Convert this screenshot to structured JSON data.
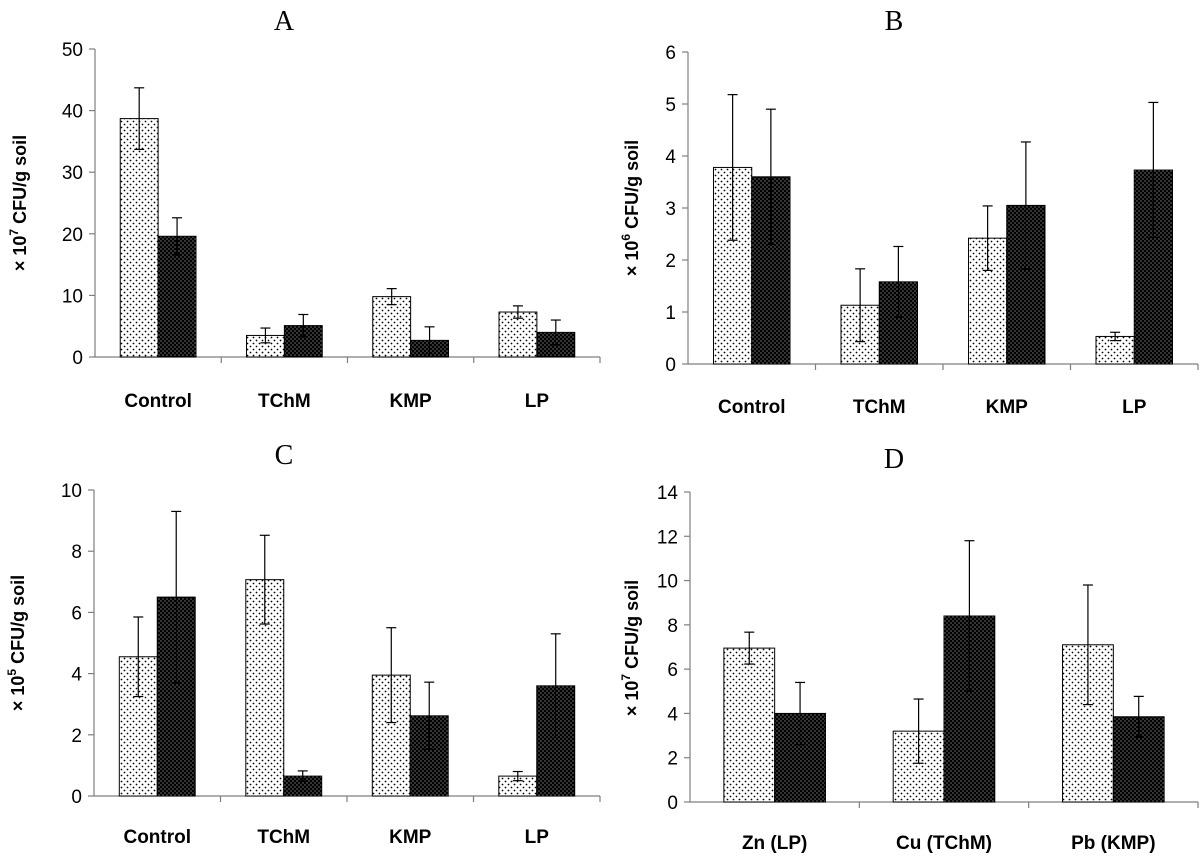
{
  "chart_data": [
    {
      "type": "bar",
      "title": "A",
      "ylabel_prefix": "× 10",
      "ylabel_exp": "7",
      "ylabel_suffix": " CFU/g soil",
      "ylim": [
        0,
        50
      ],
      "yticks": [
        "0",
        "10",
        "20",
        "30",
        "40",
        "50"
      ],
      "categories": [
        "Control",
        "TChM",
        "KMP",
        "LP"
      ],
      "series": [
        {
          "name": "dotted",
          "pattern": "dots-light",
          "values": [
            38.7,
            3.5,
            9.8,
            7.3
          ],
          "errors": [
            5.0,
            1.2,
            1.3,
            1.0
          ]
        },
        {
          "name": "dark",
          "pattern": "dots-dark",
          "values": [
            19.6,
            5.1,
            2.7,
            4.0
          ],
          "errors": [
            3.0,
            1.8,
            2.2,
            2.0
          ]
        }
      ]
    },
    {
      "type": "bar",
      "title": "B",
      "ylabel_prefix": "× 10",
      "ylabel_exp": "6",
      "ylabel_suffix": " CFU/g soil",
      "ylim": [
        0,
        6
      ],
      "yticks": [
        "0",
        "1",
        "2",
        "3",
        "4",
        "5",
        "6"
      ],
      "categories": [
        "Control",
        "TChM",
        "KMP",
        "LP"
      ],
      "series": [
        {
          "name": "dotted",
          "pattern": "dots-light",
          "values": [
            3.78,
            1.13,
            2.42,
            0.53
          ],
          "errors": [
            1.4,
            0.7,
            0.62,
            0.08
          ]
        },
        {
          "name": "dark",
          "pattern": "dots-dark",
          "values": [
            3.6,
            1.58,
            3.05,
            3.73
          ],
          "errors": [
            1.3,
            0.68,
            1.22,
            1.3
          ]
        }
      ]
    },
    {
      "type": "bar",
      "title": "C",
      "ylabel_prefix": "× 10",
      "ylabel_exp": "5",
      "ylabel_suffix": " CFU/g soil",
      "ylim": [
        0,
        10
      ],
      "yticks": [
        "0",
        "2",
        "4",
        "6",
        "8",
        "10"
      ],
      "categories": [
        "Control",
        "TChM",
        "KMP",
        "LP"
      ],
      "series": [
        {
          "name": "dotted",
          "pattern": "dots-light",
          "values": [
            4.55,
            7.07,
            3.95,
            0.65
          ],
          "errors": [
            1.3,
            1.45,
            1.55,
            0.15
          ]
        },
        {
          "name": "dark",
          "pattern": "dots-dark",
          "values": [
            6.5,
            0.65,
            2.62,
            3.6
          ],
          "errors": [
            2.8,
            0.17,
            1.1,
            1.7
          ]
        }
      ]
    },
    {
      "type": "bar",
      "title": "D",
      "ylabel_prefix": "× 10",
      "ylabel_exp": "7",
      "ylabel_suffix": " CFU/g soil",
      "ylim": [
        0,
        14
      ],
      "yticks": [
        "0",
        "2",
        "4",
        "6",
        "8",
        "10",
        "12",
        "14"
      ],
      "categories": [
        "Zn (LP)",
        "Cu (TChM)",
        "Pb (KMP)"
      ],
      "series": [
        {
          "name": "dotted",
          "pattern": "dots-light",
          "values": [
            6.95,
            3.2,
            7.1
          ],
          "errors": [
            0.72,
            1.45,
            2.7
          ]
        },
        {
          "name": "dark",
          "pattern": "dots-dark",
          "values": [
            4.0,
            8.4,
            3.85
          ],
          "errors": [
            1.4,
            3.4,
            0.92
          ]
        }
      ]
    }
  ]
}
